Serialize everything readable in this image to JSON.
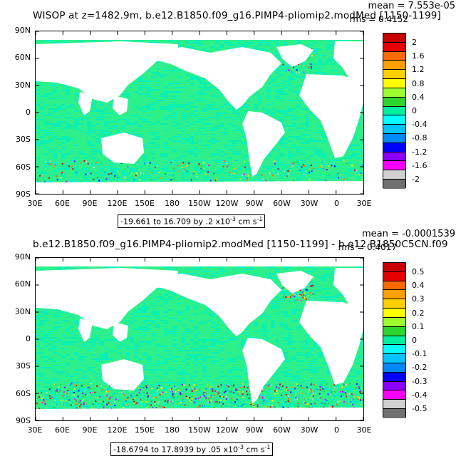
{
  "panel1": {
    "title": "WISOP at z=1482.9m, b.e12.B1850.f09_g16.PIMP4-pliomip2.modMed [1150-1199]",
    "mean": "mean = 7.553e-05",
    "rms": "rms = 0.4152",
    "range_text": "-19.661 to 16.709 by .2 x10",
    "range_exp": "-3",
    "range_unit": " cm s",
    "range_unit_exp": "-1",
    "colorbar_labels": [
      "2",
      "1.6",
      "1.2",
      "0.8",
      "0.4",
      "0",
      "-0.4",
      "-0.8",
      "-1.2",
      "-1.6",
      "-2"
    ]
  },
  "panel2": {
    "title": "b.e12.B1850.f09_g16.PIMP4-pliomip2.modMed [1150-1199] - b.e12.B1850C5CN.f09",
    "mean": "mean = -0.0001539",
    "rms": "rms = 0.4017",
    "range_text": "-18.6794 to 17.8939 by .05 x10",
    "range_exp": "-3",
    "range_unit": " cm s",
    "range_unit_exp": "-1",
    "colorbar_labels": [
      "0.5",
      "0.4",
      "0.3",
      "0.2",
      "0.1",
      "0",
      "-0.1",
      "-0.2",
      "-0.3",
      "-0.4",
      "-0.5"
    ]
  },
  "lat_labels": [
    "90N",
    "60N",
    "30N",
    "0",
    "30S",
    "60S",
    "90S"
  ],
  "lon_labels": [
    "30E",
    "60E",
    "90E",
    "120E",
    "150E",
    "180",
    "150W",
    "120W",
    "90W",
    "60W",
    "30W",
    "0",
    "30E"
  ],
  "colors": {
    "colorbar": [
      "#c80000",
      "#e80000",
      "#ff6a00",
      "#ff9f00",
      "#ffd000",
      "#ffff00",
      "#9cff2e",
      "#2dd62d",
      "#00f0a0",
      "#00ffff",
      "#00c4ff",
      "#0088ff",
      "#0000ff",
      "#8a00ff",
      "#ff00ff",
      "#d0d0d0",
      "#707070"
    ],
    "ocean": "#2ef08a",
    "ocean_alt": "#00f0c0",
    "land": "#ffffff"
  }
}
